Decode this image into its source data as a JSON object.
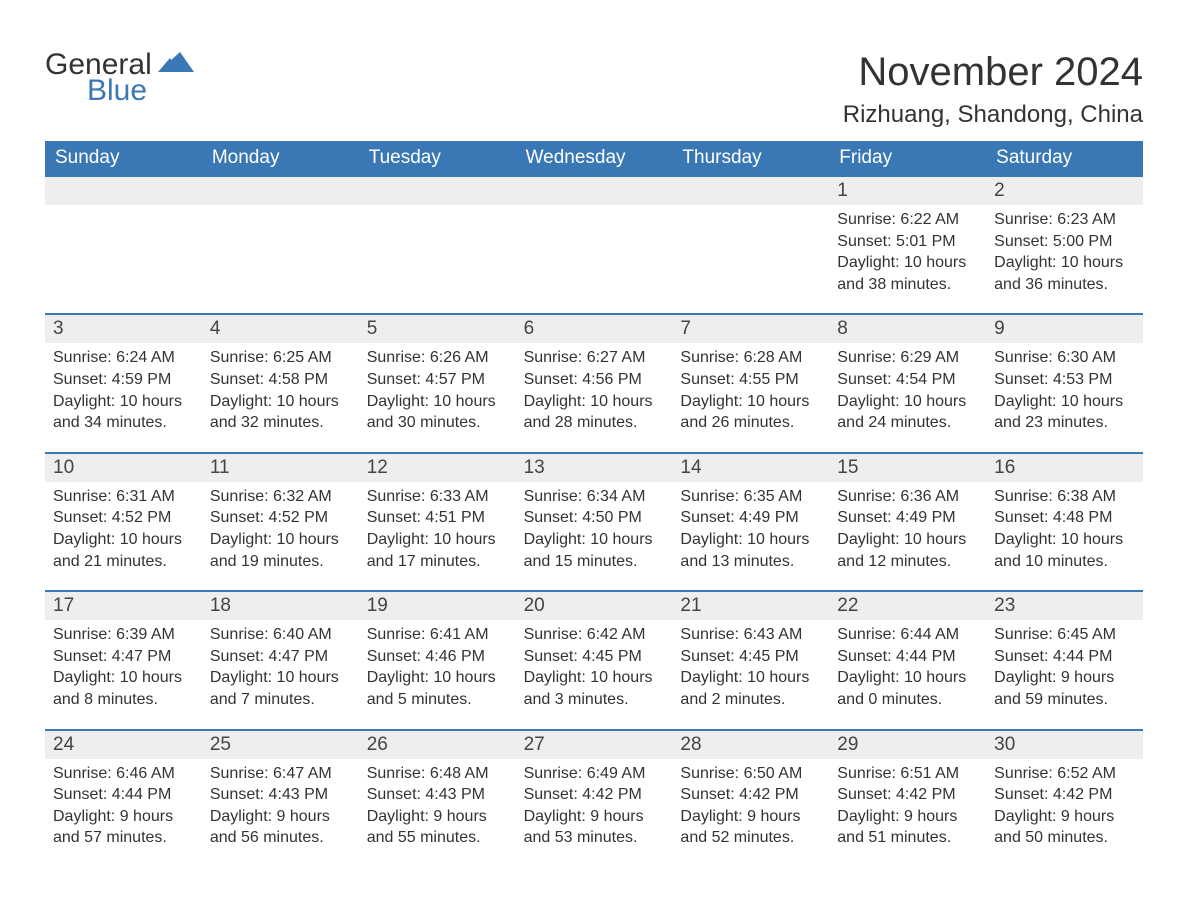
{
  "logo": {
    "text1": "General",
    "text2": "Blue",
    "flag_color": "#3a78b5"
  },
  "title": "November 2024",
  "location": "Rizhuang, Shandong, China",
  "colors": {
    "header_bg": "#3a78b5",
    "header_text": "#ffffff",
    "day_stripe_bg": "#eeeeee",
    "day_stripe_border": "#3a78b5",
    "body_text": "#333333",
    "page_bg": "#ffffff"
  },
  "typography": {
    "title_fontsize": 40,
    "location_fontsize": 24,
    "dow_fontsize": 19,
    "daynum_fontsize": 19,
    "body_fontsize": 16
  },
  "layout": {
    "columns": 7,
    "leading_blanks": 5,
    "cell_min_height": 130
  },
  "days_of_week": [
    "Sunday",
    "Monday",
    "Tuesday",
    "Wednesday",
    "Thursday",
    "Friday",
    "Saturday"
  ],
  "days": [
    {
      "n": 1,
      "sunrise": "6:22 AM",
      "sunset": "5:01 PM",
      "daylight": "10 hours and 38 minutes."
    },
    {
      "n": 2,
      "sunrise": "6:23 AM",
      "sunset": "5:00 PM",
      "daylight": "10 hours and 36 minutes."
    },
    {
      "n": 3,
      "sunrise": "6:24 AM",
      "sunset": "4:59 PM",
      "daylight": "10 hours and 34 minutes."
    },
    {
      "n": 4,
      "sunrise": "6:25 AM",
      "sunset": "4:58 PM",
      "daylight": "10 hours and 32 minutes."
    },
    {
      "n": 5,
      "sunrise": "6:26 AM",
      "sunset": "4:57 PM",
      "daylight": "10 hours and 30 minutes."
    },
    {
      "n": 6,
      "sunrise": "6:27 AM",
      "sunset": "4:56 PM",
      "daylight": "10 hours and 28 minutes."
    },
    {
      "n": 7,
      "sunrise": "6:28 AM",
      "sunset": "4:55 PM",
      "daylight": "10 hours and 26 minutes."
    },
    {
      "n": 8,
      "sunrise": "6:29 AM",
      "sunset": "4:54 PM",
      "daylight": "10 hours and 24 minutes."
    },
    {
      "n": 9,
      "sunrise": "6:30 AM",
      "sunset": "4:53 PM",
      "daylight": "10 hours and 23 minutes."
    },
    {
      "n": 10,
      "sunrise": "6:31 AM",
      "sunset": "4:52 PM",
      "daylight": "10 hours and 21 minutes."
    },
    {
      "n": 11,
      "sunrise": "6:32 AM",
      "sunset": "4:52 PM",
      "daylight": "10 hours and 19 minutes."
    },
    {
      "n": 12,
      "sunrise": "6:33 AM",
      "sunset": "4:51 PM",
      "daylight": "10 hours and 17 minutes."
    },
    {
      "n": 13,
      "sunrise": "6:34 AM",
      "sunset": "4:50 PM",
      "daylight": "10 hours and 15 minutes."
    },
    {
      "n": 14,
      "sunrise": "6:35 AM",
      "sunset": "4:49 PM",
      "daylight": "10 hours and 13 minutes."
    },
    {
      "n": 15,
      "sunrise": "6:36 AM",
      "sunset": "4:49 PM",
      "daylight": "10 hours and 12 minutes."
    },
    {
      "n": 16,
      "sunrise": "6:38 AM",
      "sunset": "4:48 PM",
      "daylight": "10 hours and 10 minutes."
    },
    {
      "n": 17,
      "sunrise": "6:39 AM",
      "sunset": "4:47 PM",
      "daylight": "10 hours and 8 minutes."
    },
    {
      "n": 18,
      "sunrise": "6:40 AM",
      "sunset": "4:47 PM",
      "daylight": "10 hours and 7 minutes."
    },
    {
      "n": 19,
      "sunrise": "6:41 AM",
      "sunset": "4:46 PM",
      "daylight": "10 hours and 5 minutes."
    },
    {
      "n": 20,
      "sunrise": "6:42 AM",
      "sunset": "4:45 PM",
      "daylight": "10 hours and 3 minutes."
    },
    {
      "n": 21,
      "sunrise": "6:43 AM",
      "sunset": "4:45 PM",
      "daylight": "10 hours and 2 minutes."
    },
    {
      "n": 22,
      "sunrise": "6:44 AM",
      "sunset": "4:44 PM",
      "daylight": "10 hours and 0 minutes."
    },
    {
      "n": 23,
      "sunrise": "6:45 AM",
      "sunset": "4:44 PM",
      "daylight": "9 hours and 59 minutes."
    },
    {
      "n": 24,
      "sunrise": "6:46 AM",
      "sunset": "4:44 PM",
      "daylight": "9 hours and 57 minutes."
    },
    {
      "n": 25,
      "sunrise": "6:47 AM",
      "sunset": "4:43 PM",
      "daylight": "9 hours and 56 minutes."
    },
    {
      "n": 26,
      "sunrise": "6:48 AM",
      "sunset": "4:43 PM",
      "daylight": "9 hours and 55 minutes."
    },
    {
      "n": 27,
      "sunrise": "6:49 AM",
      "sunset": "4:42 PM",
      "daylight": "9 hours and 53 minutes."
    },
    {
      "n": 28,
      "sunrise": "6:50 AM",
      "sunset": "4:42 PM",
      "daylight": "9 hours and 52 minutes."
    },
    {
      "n": 29,
      "sunrise": "6:51 AM",
      "sunset": "4:42 PM",
      "daylight": "9 hours and 51 minutes."
    },
    {
      "n": 30,
      "sunrise": "6:52 AM",
      "sunset": "4:42 PM",
      "daylight": "9 hours and 50 minutes."
    }
  ],
  "labels": {
    "sunrise_prefix": "Sunrise: ",
    "sunset_prefix": "Sunset: ",
    "daylight_prefix": "Daylight: "
  }
}
